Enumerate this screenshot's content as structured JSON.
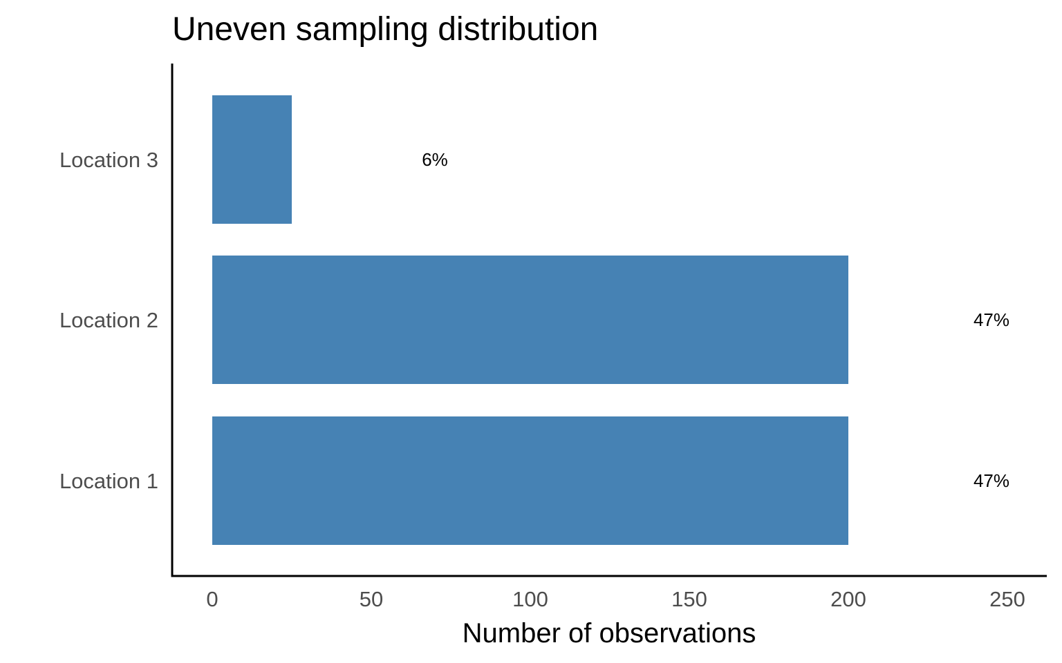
{
  "chart_data": {
    "type": "bar",
    "orientation": "horizontal",
    "title": "Uneven sampling distribution",
    "xlabel": "Number of observations",
    "ylabel": "",
    "categories": [
      "Location 1",
      "Location 2",
      "Location 3"
    ],
    "values": [
      200,
      200,
      25
    ],
    "data_labels": [
      "47%",
      "47%",
      "6%"
    ],
    "xlim": [
      0,
      250
    ],
    "x_ticks": [
      0,
      50,
      100,
      150,
      200,
      250
    ],
    "grid": false,
    "legend": "none",
    "colors": {
      "bar": "#4682b4",
      "axis": "#000000",
      "tick_label": "#4d4d4d",
      "text": "#000000"
    }
  }
}
